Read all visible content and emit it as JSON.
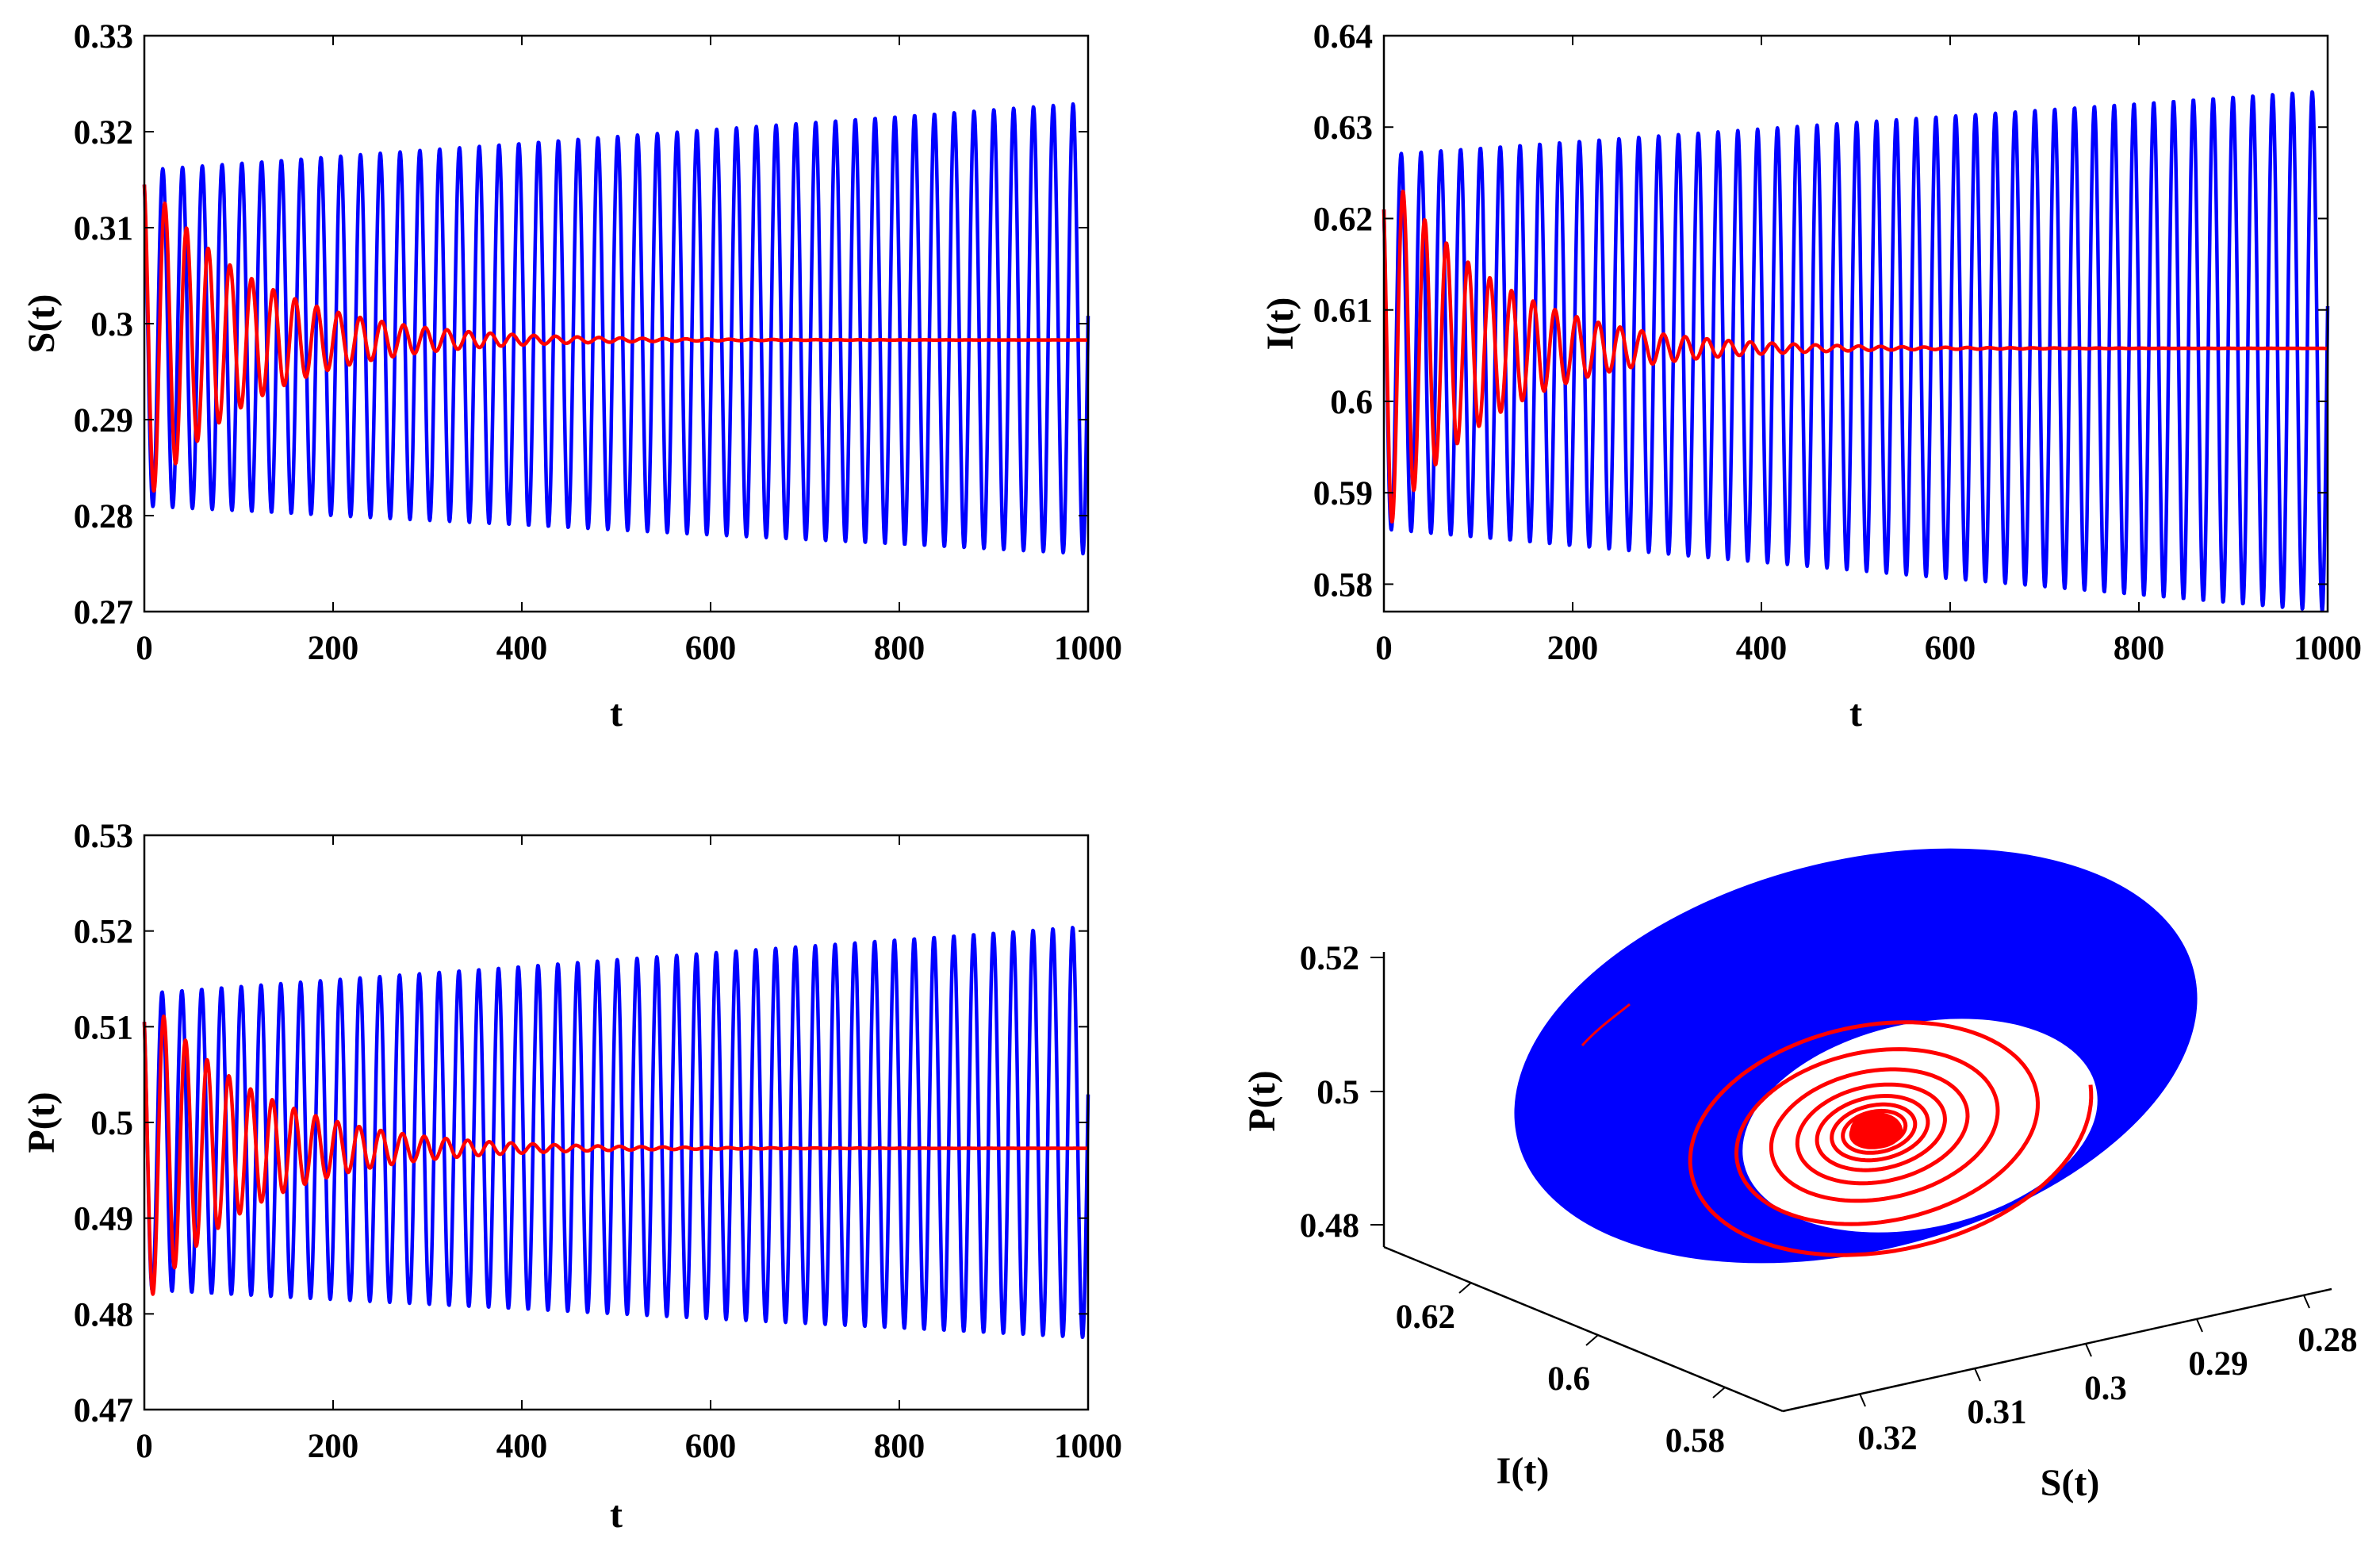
{
  "colors": {
    "series_a": "#0000ff",
    "series_b": "#ff0000",
    "axis": "#000000"
  },
  "chart_data": [
    {
      "id": "S",
      "type": "line",
      "xlabel": "t",
      "ylabel": "S(t)",
      "xlim": [
        0,
        1000
      ],
      "ylim": [
        0.27,
        0.33
      ],
      "xticks": [
        0,
        200,
        400,
        600,
        800,
        1000
      ],
      "xtick_labels": [
        "0",
        "200",
        "400",
        "600",
        "800",
        "1000"
      ],
      "yticks": [
        0.27,
        0.28,
        0.29,
        0.3,
        0.31,
        0.32,
        0.33
      ],
      "ytick_labels": [
        "0.27",
        "0.28",
        "0.29",
        "0.3",
        "0.31",
        "0.32",
        "0.33"
      ],
      "series": [
        {
          "name": "blue",
          "color": "#0000ff",
          "kind": "sustained",
          "start": 0.3145,
          "center_start": 0.2985,
          "center_end": 0.2995,
          "amp_start": 0.0175,
          "amp_end": 0.0235,
          "period": 21
        },
        {
          "name": "red",
          "color": "#ff0000",
          "kind": "damped",
          "start": 0.3145,
          "center": 0.2983,
          "amp0": 0.0172,
          "tau": 115,
          "period": 23
        }
      ]
    },
    {
      "id": "I",
      "type": "line",
      "xlabel": "t",
      "ylabel": "I(t)",
      "xlim": [
        0,
        1000
      ],
      "ylim": [
        0.577,
        0.64
      ],
      "xticks": [
        0,
        200,
        400,
        600,
        800,
        1000
      ],
      "xtick_labels": [
        "0",
        "200",
        "400",
        "600",
        "800",
        "1000"
      ],
      "yticks": [
        0.58,
        0.59,
        0.6,
        0.61,
        0.62,
        0.63,
        0.64
      ],
      "ytick_labels": [
        "0.58",
        "0.59",
        "0.6",
        "0.61",
        "0.62",
        "0.63",
        "0.64"
      ],
      "series": [
        {
          "name": "blue",
          "color": "#0000ff",
          "kind": "sustained",
          "start": 0.621,
          "center_start": 0.6065,
          "center_end": 0.6055,
          "amp_start": 0.0205,
          "amp_end": 0.0285,
          "period": 21
        },
        {
          "name": "red",
          "color": "#ff0000",
          "kind": "damped",
          "start": 0.621,
          "center": 0.6058,
          "amp0": 0.0205,
          "tau": 115,
          "period": 23
        }
      ]
    },
    {
      "id": "P",
      "type": "line",
      "xlabel": "t",
      "ylabel": "P(t)",
      "xlim": [
        0,
        1000
      ],
      "ylim": [
        0.47,
        0.53
      ],
      "xticks": [
        0,
        200,
        400,
        600,
        800,
        1000
      ],
      "xtick_labels": [
        "0",
        "200",
        "400",
        "600",
        "800",
        "1000"
      ],
      "yticks": [
        0.47,
        0.48,
        0.49,
        0.5,
        0.51,
        0.52,
        0.53
      ],
      "ytick_labels": [
        "0.47",
        "0.48",
        "0.49",
        "0.5",
        "0.51",
        "0.52",
        "0.53"
      ],
      "series": [
        {
          "name": "blue",
          "color": "#0000ff",
          "kind": "sustained",
          "start": 0.5105,
          "center_start": 0.498,
          "center_end": 0.499,
          "amp_start": 0.0155,
          "amp_end": 0.0215,
          "period": 21
        },
        {
          "name": "red",
          "color": "#ff0000",
          "kind": "damped",
          "start": 0.5105,
          "center": 0.4973,
          "amp0": 0.0165,
          "tau": 115,
          "period": 23
        }
      ]
    },
    {
      "id": "phase3d",
      "type": "line3d",
      "xlabel": "S(t)",
      "ylabel": "I(t)",
      "zlabel": "P(t)",
      "xtick_labels": [
        "0.32",
        "0.31",
        "0.3",
        "0.29",
        "0.28"
      ],
      "ytick_labels": [
        "0.62",
        "0.6",
        "0.58"
      ],
      "ztick_labels": [
        "0.52",
        "0.5",
        "0.48"
      ],
      "series": [
        {
          "name": "blue",
          "color": "#0000ff",
          "kind": "limit-cycle band"
        },
        {
          "name": "red",
          "color": "#ff0000",
          "kind": "spiral to equilibrium"
        }
      ]
    }
  ]
}
